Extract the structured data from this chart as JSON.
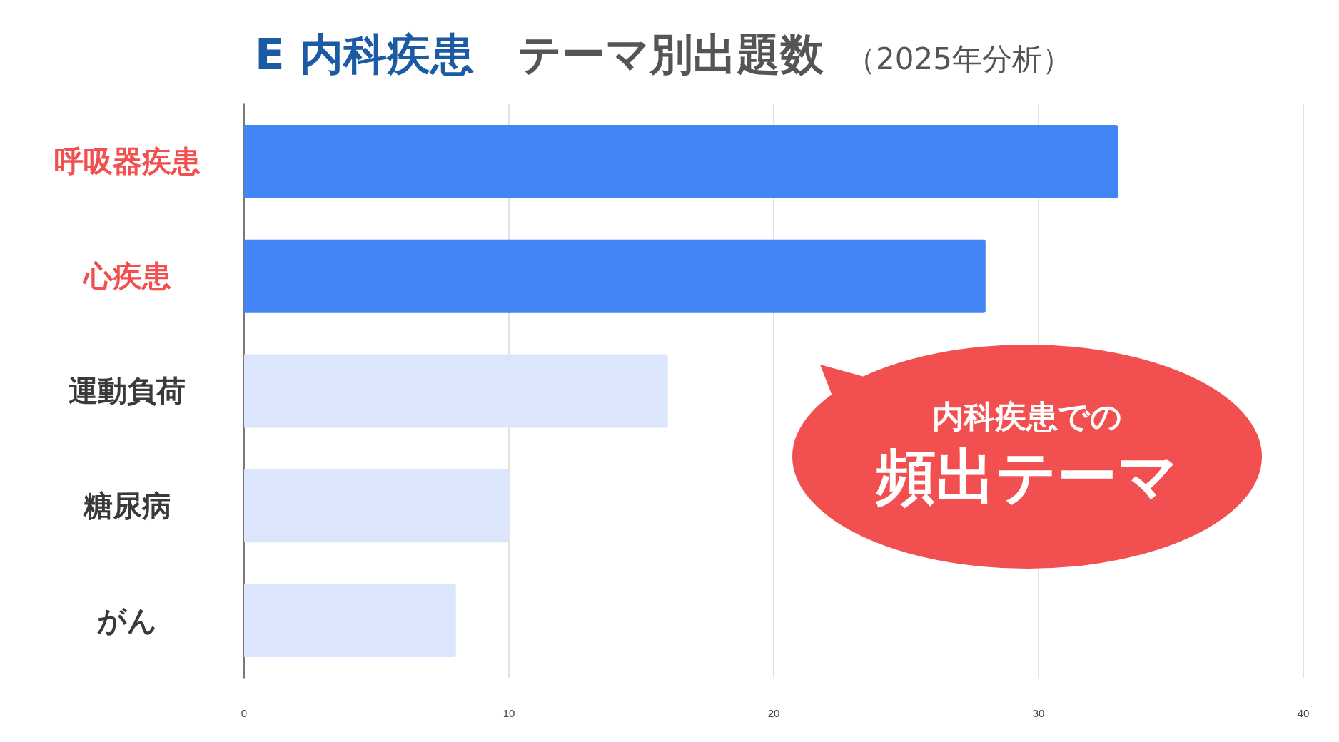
{
  "chart_data": {
    "type": "bar",
    "orientation": "horizontal",
    "title": "E 内科疾患　テーマ別出題数",
    "subtitle": "（2025年分析）",
    "categories": [
      "呼吸器疾患",
      "心疾患",
      "運動負荷",
      "糖尿病",
      "がん"
    ],
    "values": [
      33,
      28,
      16,
      10,
      8
    ],
    "colors": [
      "#4285f4",
      "#4285f4",
      "#dbe6fc",
      "#dbe6fc",
      "#dbe6fc"
    ],
    "xlim": [
      0,
      40
    ],
    "xticks": [
      0,
      10,
      20,
      30,
      40
    ],
    "grid": "x",
    "annotations": [
      "内科疾患での",
      "頻出テーマ"
    ]
  }
}
